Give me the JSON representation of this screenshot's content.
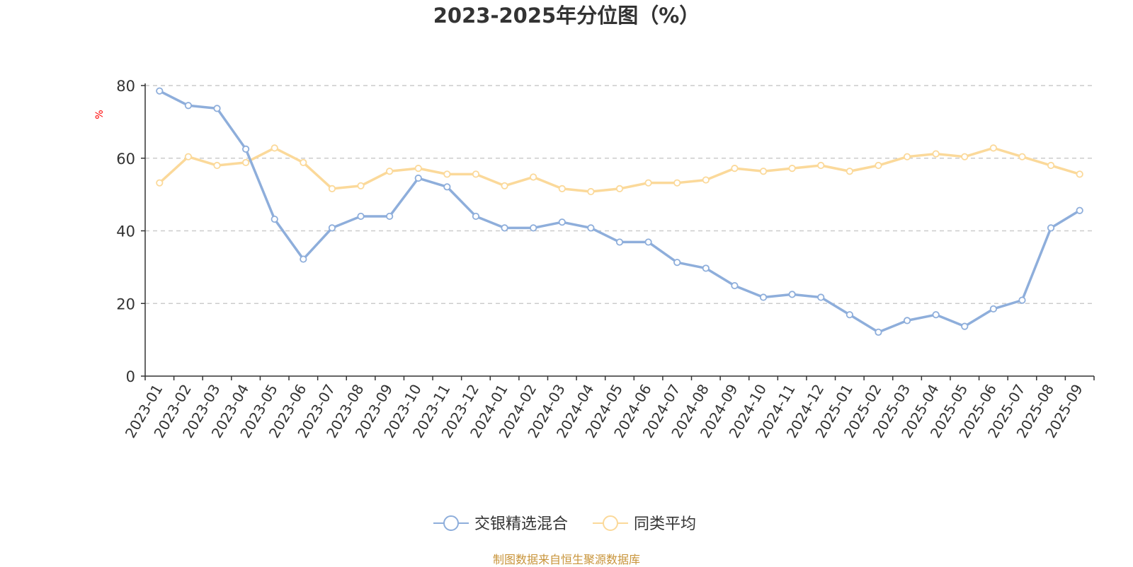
{
  "chart_data": {
    "type": "line",
    "title": "2023-2025年分位图（%）",
    "ylabel": "%",
    "xlabel": "",
    "ylim": [
      0,
      80
    ],
    "yticks": [
      0,
      20,
      40,
      60,
      80
    ],
    "grid": true,
    "legend_position": "bottom-center",
    "categories": [
      "2023-01",
      "2023-02",
      "2023-03",
      "2023-04",
      "2023-05",
      "2023-06",
      "2023-07",
      "2023-08",
      "2023-09",
      "2023-10",
      "2023-11",
      "2023-12",
      "2024-01",
      "2024-02",
      "2024-03",
      "2024-04",
      "2024-05",
      "2024-06",
      "2024-07",
      "2024-08",
      "2024-09",
      "2024-10",
      "2024-11",
      "2024-12",
      "2025-01",
      "2025-02",
      "2025-03",
      "2025-04",
      "2025-05",
      "2025-06",
      "2025-07",
      "2025-08",
      "2025-09"
    ],
    "series": [
      {
        "name": "交银精选混合",
        "color": "#8eaedb",
        "values": [
          78.5,
          74.5,
          73.7,
          62.5,
          43.2,
          32.2,
          40.8,
          44.0,
          44.0,
          54.5,
          52.1,
          44.0,
          40.8,
          40.8,
          42.4,
          40.8,
          36.9,
          36.9,
          31.3,
          29.7,
          24.9,
          21.7,
          22.5,
          21.7,
          16.9,
          12.1,
          15.3,
          16.9,
          13.7,
          18.5,
          20.9,
          40.8,
          45.6
        ]
      },
      {
        "name": "同类平均",
        "color": "#fbd99a",
        "values": [
          53.2,
          60.4,
          58.0,
          58.8,
          62.8,
          58.8,
          51.6,
          52.4,
          56.4,
          57.2,
          55.6,
          55.6,
          52.4,
          54.8,
          51.6,
          50.8,
          51.6,
          53.2,
          53.2,
          54.0,
          57.2,
          56.4,
          57.2,
          58.0,
          56.4,
          58.0,
          60.4,
          61.2,
          60.4,
          62.8,
          60.4,
          58.0,
          55.6
        ]
      }
    ]
  },
  "footer": {
    "source_text": "制图数据来自恒生聚源数据库"
  }
}
